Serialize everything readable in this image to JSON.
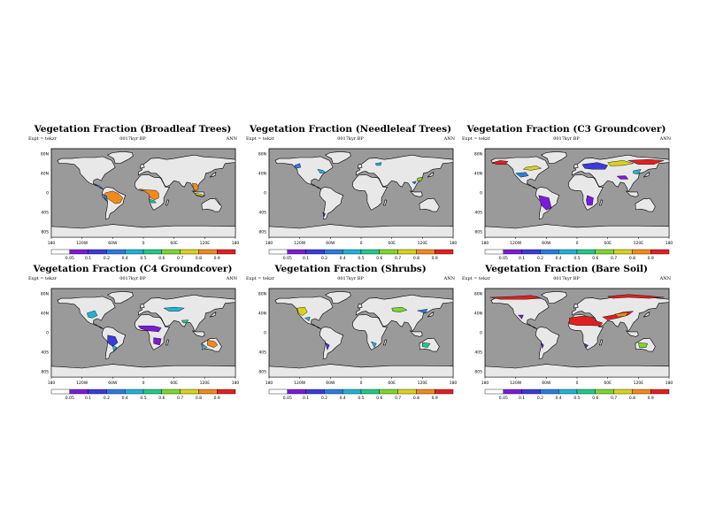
{
  "chart_data": [
    {
      "type": "heatmap",
      "title": "Vegetation Fraction (Broadleaf Trees)",
      "expt": "Expt = tekzr",
      "period": "0017kyr BP",
      "season": "ANN",
      "x_ticks": [
        "180",
        "120W",
        "60W",
        "0",
        "60E",
        "120E",
        "180"
      ],
      "y_ticks": [
        "80N",
        "40N",
        "0",
        "40S",
        "80S"
      ],
      "colorbar_ticks": [
        "0.05",
        "0.1",
        "0.2",
        "0.4",
        "0.5",
        "0.6",
        "0.7",
        "0.8",
        "0.9"
      ],
      "variable": "broadleaf"
    },
    {
      "type": "heatmap",
      "title": "Vegetation Fraction (Needleleaf Trees)",
      "expt": "Expt = tekzr",
      "period": "0017kyr BP",
      "season": "ANN",
      "x_ticks": [
        "180",
        "120W",
        "60W",
        "0",
        "60E",
        "120E",
        "180"
      ],
      "y_ticks": [
        "80N",
        "40N",
        "0",
        "40S",
        "80S"
      ],
      "colorbar_ticks": [
        "0.05",
        "0.1",
        "0.2",
        "0.4",
        "0.5",
        "0.6",
        "0.7",
        "0.8",
        "0.9"
      ],
      "variable": "needleleaf"
    },
    {
      "type": "heatmap",
      "title": "Vegetation Fraction (C3 Groundcover)",
      "expt": "Expt = tekzr",
      "period": "0017kyr BP",
      "season": "ANN",
      "x_ticks": [
        "180",
        "120W",
        "60W",
        "0",
        "60E",
        "120E",
        "180"
      ],
      "y_ticks": [
        "80N",
        "40N",
        "0",
        "40S",
        "80S"
      ],
      "colorbar_ticks": [
        "0.05",
        "0.1",
        "0.2",
        "0.4",
        "0.5",
        "0.6",
        "0.7",
        "0.8",
        "0.9"
      ],
      "variable": "c3"
    },
    {
      "type": "heatmap",
      "title": "Vegetation Fraction (C4 Groundcover)",
      "expt": "Expt = tekzr",
      "period": "0017kyr BP",
      "season": "ANN",
      "x_ticks": [
        "180",
        "120W",
        "60W",
        "0",
        "60E",
        "120E",
        "180"
      ],
      "y_ticks": [
        "80N",
        "40N",
        "0",
        "40S",
        "80S"
      ],
      "colorbar_ticks": [
        "0.05",
        "0.1",
        "0.2",
        "0.4",
        "0.5",
        "0.6",
        "0.7",
        "0.8",
        "0.9"
      ],
      "variable": "c4"
    },
    {
      "type": "heatmap",
      "title": "Vegetation Fraction (Shrubs)",
      "expt": "Expt = tekzr",
      "period": "0017kyr BP",
      "season": "ANN",
      "x_ticks": [
        "180",
        "120W",
        "60W",
        "0",
        "60E",
        "120E",
        "180"
      ],
      "y_ticks": [
        "80N",
        "40N",
        "0",
        "40S",
        "80S"
      ],
      "colorbar_ticks": [
        "0.05",
        "0.1",
        "0.2",
        "0.4",
        "0.5",
        "0.6",
        "0.7",
        "0.8",
        "0.9"
      ],
      "variable": "shrubs"
    },
    {
      "type": "heatmap",
      "title": "Vegetation Fraction (Bare Soil)",
      "expt": "Expt = tekzr",
      "period": "0017kyr BP",
      "season": "ANN",
      "x_ticks": [
        "180",
        "120W",
        "60W",
        "0",
        "60E",
        "120E",
        "180"
      ],
      "y_ticks": [
        "80N",
        "40N",
        "0",
        "40S",
        "80S"
      ],
      "colorbar_ticks": [
        "0.05",
        "0.1",
        "0.2",
        "0.4",
        "0.5",
        "0.6",
        "0.7",
        "0.8",
        "0.9"
      ],
      "variable": "bare"
    }
  ],
  "colors": {
    "ocean": "#9a9a9a",
    "land_low": "#e8e8e8",
    "scale": [
      "#ffffff",
      "#7a1bd9",
      "#3b3bd6",
      "#2b7be0",
      "#1fb3d6",
      "#20c98a",
      "#7fd62b",
      "#d7d31b",
      "#f08a1b",
      "#e02020"
    ]
  }
}
